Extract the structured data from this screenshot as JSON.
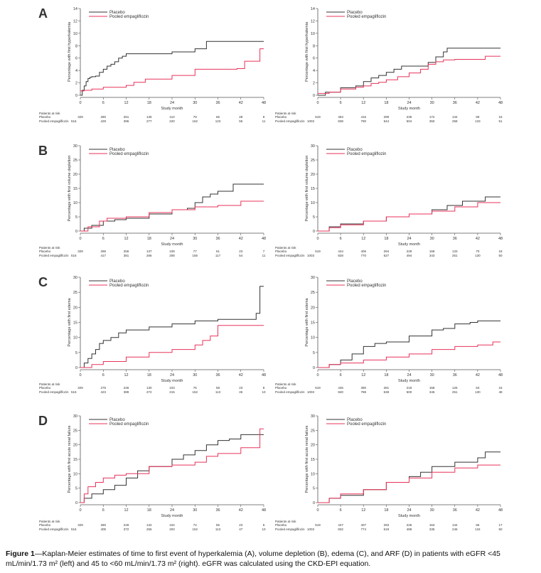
{
  "caption": {
    "label": "Figure 1",
    "text": "—Kaplan-Meier estimates of time to first event of hyperkalemia (A), volume depletion (B), edema (C), and ARF (D) in patients with eGFR <45 mL/min/1.73 m² (left) and 45 to <60 mL/min/1.73 m² (right). eGFR was calculated using the CKD-EPI equation."
  },
  "colors": {
    "placebo": "#333333",
    "empagliflozin": "#e8335a"
  },
  "chart_data": [
    {
      "type": "line",
      "panel": "A",
      "side": "left",
      "ylabel": "Percentage with first hyperkalemia",
      "xlabel": "Study month",
      "ylim": [
        0,
        14
      ],
      "yticks": [
        0,
        2,
        4,
        6,
        8,
        10,
        12,
        14
      ],
      "xlim": [
        0,
        48
      ],
      "xticks": [
        0,
        6,
        12,
        18,
        24,
        30,
        36,
        42,
        48
      ],
      "series": [
        {
          "name": "Placebo",
          "x": [
            0,
            0.5,
            1,
            1.5,
            2,
            2.5,
            3,
            4,
            5,
            6,
            7,
            8,
            9,
            10,
            11,
            12,
            24,
            30,
            33,
            48
          ],
          "y": [
            0,
            0.8,
            1.5,
            2.2,
            2.7,
            2.9,
            3.0,
            3.1,
            3.7,
            4.2,
            4.7,
            5.0,
            5.4,
            6.0,
            6.3,
            6.7,
            7.0,
            7.5,
            8.7,
            8.7
          ]
        },
        {
          "name": "Pooled empagliflozin",
          "x": [
            0,
            1,
            3,
            6,
            12,
            14,
            17,
            24,
            30,
            41,
            43,
            47,
            48
          ],
          "y": [
            0.7,
            0.8,
            1.0,
            1.3,
            1.6,
            2.1,
            2.6,
            3.2,
            4.2,
            4.3,
            5.5,
            7.5,
            7.5
          ]
        }
      ],
      "risk_table": {
        "title": "Patients at risk",
        "rows": [
          {
            "label": "Placebo",
            "values": [
              "329",
              "280",
              "251",
              "135",
              "110",
              "79",
              "66",
              "28",
              "9"
            ]
          },
          {
            "label": "Pooled empagliflozin",
            "first": "516",
            "values": [
              "429",
              "396",
              "277",
              "220",
              "162",
              "123",
              "55",
              "11"
            ]
          }
        ]
      }
    },
    {
      "type": "line",
      "panel": "A",
      "side": "right",
      "ylabel": "Percentage with first hyperkalemia",
      "xlabel": "Study month",
      "ylim": [
        0,
        14
      ],
      "yticks": [
        0,
        2,
        4,
        6,
        8,
        10,
        12,
        14
      ],
      "xlim": [
        0,
        48
      ],
      "xticks": [
        0,
        6,
        12,
        18,
        24,
        30,
        36,
        42,
        48
      ],
      "series": [
        {
          "name": "Placebo",
          "x": [
            0,
            2,
            6,
            10,
            12,
            14,
            16,
            18,
            20,
            22,
            26,
            29,
            31,
            33,
            34,
            48
          ],
          "y": [
            0,
            0.5,
            1.2,
            1.5,
            2.2,
            2.8,
            3.2,
            3.7,
            4.2,
            4.7,
            4.7,
            5.3,
            6.2,
            7.0,
            7.6,
            7.6
          ]
        },
        {
          "name": "Pooled empagliflozin",
          "x": [
            0,
            3,
            6,
            10,
            12,
            14,
            16,
            18,
            21,
            24,
            27,
            29,
            31,
            33,
            36,
            44,
            48
          ],
          "y": [
            0.3,
            0.5,
            1.0,
            1.3,
            1.5,
            1.9,
            2.1,
            2.5,
            3.0,
            3.6,
            4.2,
            5.0,
            5.4,
            5.7,
            5.8,
            6.3,
            6.3
          ]
        }
      ],
      "risk_table": {
        "title": "Patients at risk",
        "rows": [
          {
            "label": "Placebo",
            "values": [
              "519",
              "453",
              "416",
              "299",
              "235",
              "172",
              "134",
              "69",
              "15"
            ]
          },
          {
            "label": "Pooled empagliflozin",
            "first": "1003",
            "values": [
              "838",
              "790",
              "544",
              "504",
              "350",
              "258",
              "133",
              "51"
            ]
          }
        ]
      }
    },
    {
      "type": "line",
      "panel": "B",
      "side": "left",
      "ylabel": "Percentage with first volume depletion",
      "xlabel": "Study month",
      "ylim": [
        0,
        30
      ],
      "yticks": [
        0,
        5,
        10,
        15,
        20,
        25,
        30
      ],
      "xlim": [
        0,
        48
      ],
      "xticks": [
        0,
        6,
        12,
        18,
        24,
        30,
        36,
        42,
        48
      ],
      "series": [
        {
          "name": "Placebo",
          "x": [
            0,
            1,
            3,
            6,
            9,
            12,
            18,
            24,
            28,
            30,
            32,
            34,
            36,
            40,
            48
          ],
          "y": [
            0,
            1.0,
            2.0,
            3.5,
            4.0,
            4.5,
            6.0,
            7.5,
            8.0,
            10.0,
            12.0,
            13.0,
            14.0,
            16.5,
            16.5
          ]
        },
        {
          "name": "Pooled empagliflozin",
          "x": [
            0,
            2,
            5,
            7,
            12,
            18,
            24,
            30,
            36,
            42,
            48
          ],
          "y": [
            0,
            1.5,
            3.5,
            4.5,
            5.0,
            6.5,
            7.5,
            8.5,
            9.0,
            10.5,
            10.5
          ]
        }
      ],
      "risk_table": {
        "title": "Patients at risk",
        "rows": [
          {
            "label": "Placebo",
            "values": [
              "329",
              "285",
              "256",
              "137",
              "109",
              "77",
              "61",
              "23",
              "7"
            ]
          },
          {
            "label": "Pooled empagliflozin",
            "first": "516",
            "values": [
              "417",
              "381",
              "266",
              "208",
              "156",
              "117",
              "54",
              "11"
            ]
          }
        ]
      }
    },
    {
      "type": "line",
      "panel": "B",
      "side": "right",
      "ylabel": "Percentage with first volume depletion",
      "xlabel": "Study month",
      "ylim": [
        0,
        30
      ],
      "yticks": [
        0,
        5,
        10,
        15,
        20,
        25,
        30
      ],
      "xlim": [
        0,
        48
      ],
      "xticks": [
        0,
        6,
        12,
        18,
        24,
        30,
        36,
        42,
        48
      ],
      "series": [
        {
          "name": "Placebo",
          "x": [
            0,
            3,
            6,
            12,
            18,
            24,
            30,
            34,
            38,
            44,
            48
          ],
          "y": [
            0,
            1.5,
            2.5,
            3.5,
            5.0,
            6.0,
            7.5,
            9.0,
            10.5,
            12.0,
            12.0
          ]
        },
        {
          "name": "Pooled empagliflozin",
          "x": [
            0,
            3,
            6,
            12,
            18,
            24,
            30,
            36,
            42,
            48
          ],
          "y": [
            0,
            1.2,
            2.2,
            3.5,
            5.0,
            6.0,
            7.0,
            8.5,
            10.0,
            10.0
          ]
        }
      ],
      "risk_table": {
        "title": "Patients at risk",
        "rows": [
          {
            "label": "Placebo",
            "values": [
              "519",
              "444",
              "406",
              "294",
              "229",
              "168",
              "133",
              "70",
              "18"
            ]
          },
          {
            "label": "Pooled empagliflozin",
            "first": "1003",
            "values": [
              "828",
              "770",
              "627",
              "494",
              "343",
              "251",
              "130",
              "50"
            ]
          }
        ]
      }
    },
    {
      "type": "line",
      "panel": "C",
      "side": "left",
      "ylabel": "Percentage with first edema",
      "xlabel": "Study month",
      "ylim": [
        0,
        30
      ],
      "yticks": [
        0,
        5,
        10,
        15,
        20,
        25,
        30
      ],
      "xlim": [
        0,
        48
      ],
      "xticks": [
        0,
        6,
        12,
        18,
        24,
        30,
        36,
        42,
        48
      ],
      "series": [
        {
          "name": "Placebo",
          "x": [
            0,
            1,
            2,
            3,
            4,
            5,
            6,
            8,
            10,
            12,
            18,
            24,
            30,
            36,
            46,
            47,
            48
          ],
          "y": [
            0,
            1.5,
            3.0,
            4.5,
            6.0,
            8.0,
            9.0,
            10.0,
            11.5,
            12.5,
            13.5,
            14.5,
            15.5,
            16.0,
            18.0,
            27.0,
            27.0
          ]
        },
        {
          "name": "Pooled empagliflozin",
          "x": [
            0,
            3,
            6,
            12,
            18,
            24,
            30,
            32,
            34,
            36,
            48
          ],
          "y": [
            0,
            1.0,
            2.0,
            3.5,
            5.0,
            6.0,
            7.5,
            9.0,
            10.5,
            14.0,
            14.0
          ]
        }
      ],
      "risk_table": {
        "title": "Patients at risk",
        "rows": [
          {
            "label": "Placebo",
            "values": [
              "329",
              "275",
              "246",
              "130",
              "103",
              "75",
              "58",
              "23",
              "8"
            ]
          },
          {
            "label": "Pooled empagliflozin",
            "first": "516",
            "values": [
              "423",
              "389",
              "272",
              "215",
              "152",
              "113",
              "45",
              "10"
            ]
          }
        ]
      }
    },
    {
      "type": "line",
      "panel": "C",
      "side": "right",
      "ylabel": "Percentage with first edema",
      "xlabel": "Study month",
      "ylim": [
        0,
        30
      ],
      "yticks": [
        0,
        5,
        10,
        15,
        20,
        25,
        30
      ],
      "xlim": [
        0,
        48
      ],
      "xticks": [
        0,
        6,
        12,
        18,
        24,
        30,
        36,
        42,
        48
      ],
      "series": [
        {
          "name": "Placebo",
          "x": [
            0,
            3,
            6,
            9,
            12,
            15,
            18,
            24,
            30,
            33,
            36,
            40,
            42,
            48
          ],
          "y": [
            0,
            1.0,
            2.5,
            4.5,
            7.0,
            8.0,
            8.5,
            10.5,
            12.5,
            13.0,
            14.5,
            15.0,
            15.5,
            15.5
          ]
        },
        {
          "name": "Pooled empagliflozin",
          "x": [
            0,
            3,
            6,
            12,
            18,
            24,
            30,
            36,
            42,
            46,
            48
          ],
          "y": [
            0,
            1.0,
            1.5,
            2.5,
            3.5,
            4.5,
            6.0,
            7.0,
            7.5,
            8.5,
            8.5
          ]
        }
      ],
      "risk_table": {
        "title": "Patients at risk",
        "rows": [
          {
            "label": "Placebo",
            "values": [
              "519",
              "445",
              "390",
              "281",
              "218",
              "158",
              "126",
              "63",
              "16"
            ]
          },
          {
            "label": "Pooled empagliflozin",
            "first": "1003",
            "values": [
              "840",
              "788",
              "638",
              "500",
              "346",
              "251",
              "130",
              "48"
            ]
          }
        ]
      }
    },
    {
      "type": "line",
      "panel": "D",
      "side": "left",
      "ylabel": "Percentage with first acute renal failure",
      "xlabel": "Study month",
      "ylim": [
        0,
        30
      ],
      "yticks": [
        0,
        5,
        10,
        15,
        20,
        25,
        30
      ],
      "xlim": [
        0,
        48
      ],
      "xticks": [
        0,
        6,
        12,
        18,
        24,
        30,
        36,
        42,
        48
      ],
      "series": [
        {
          "name": "Placebo",
          "x": [
            0,
            1,
            3,
            6,
            9,
            12,
            15,
            18,
            24,
            27,
            30,
            33,
            36,
            39,
            42,
            48
          ],
          "y": [
            0,
            1.5,
            3.0,
            4.5,
            6.0,
            8.5,
            11.0,
            12.5,
            15.0,
            16.5,
            18.0,
            20.0,
            21.5,
            22.0,
            23.5,
            23.5
          ]
        },
        {
          "name": "Pooled empagliflozin",
          "x": [
            0,
            1,
            2,
            4,
            6,
            9,
            12,
            18,
            24,
            30,
            33,
            36,
            42,
            47,
            48
          ],
          "y": [
            0,
            3.0,
            5.5,
            7.0,
            8.5,
            9.5,
            10.0,
            12.5,
            13.0,
            14.0,
            16.0,
            17.0,
            19.0,
            25.5,
            25.5
          ]
        }
      ],
      "risk_table": {
        "title": "Patients at risk",
        "rows": [
          {
            "label": "Placebo",
            "values": [
              "329",
              "280",
              "249",
              "132",
              "104",
              "74",
              "55",
              "23",
              "6"
            ]
          },
          {
            "label": "Pooled empagliflozin",
            "first": "516",
            "values": [
              "405",
              "372",
              "256",
              "203",
              "152",
              "113",
              "47",
              "10"
            ]
          }
        ]
      }
    },
    {
      "type": "line",
      "panel": "D",
      "side": "right",
      "ylabel": "Percentage with first acute renal failure",
      "xlabel": "Study month",
      "ylim": [
        0,
        30
      ],
      "yticks": [
        0,
        5,
        10,
        15,
        20,
        25,
        30
      ],
      "xlim": [
        0,
        48
      ],
      "xticks": [
        0,
        6,
        12,
        18,
        24,
        30,
        36,
        42,
        48
      ],
      "series": [
        {
          "name": "Placebo",
          "x": [
            0,
            3,
            6,
            12,
            18,
            24,
            27,
            30,
            36,
            42,
            44,
            48
          ],
          "y": [
            0,
            1.5,
            2.5,
            4.5,
            7.0,
            9.0,
            10.5,
            12.5,
            14.0,
            15.5,
            17.5,
            17.5
          ]
        },
        {
          "name": "Pooled empagliflozin",
          "x": [
            0,
            3,
            6,
            12,
            18,
            24,
            30,
            36,
            42,
            48
          ],
          "y": [
            0,
            1.5,
            3.0,
            4.5,
            7.0,
            8.5,
            10.5,
            12.0,
            13.0,
            13.0
          ]
        }
      ],
      "risk_table": {
        "title": "Patients at risk",
        "rows": [
          {
            "label": "Placebo",
            "values": [
              "519",
              "447",
              "407",
              "293",
              "226",
              "163",
              "134",
              "66",
              "17"
            ]
          },
          {
            "label": "Pooled empagliflozin",
            "first": "1003",
            "values": [
              "832",
              "774",
              "619",
              "488",
              "335",
              "246",
              "134",
              "50"
            ]
          }
        ]
      }
    }
  ]
}
